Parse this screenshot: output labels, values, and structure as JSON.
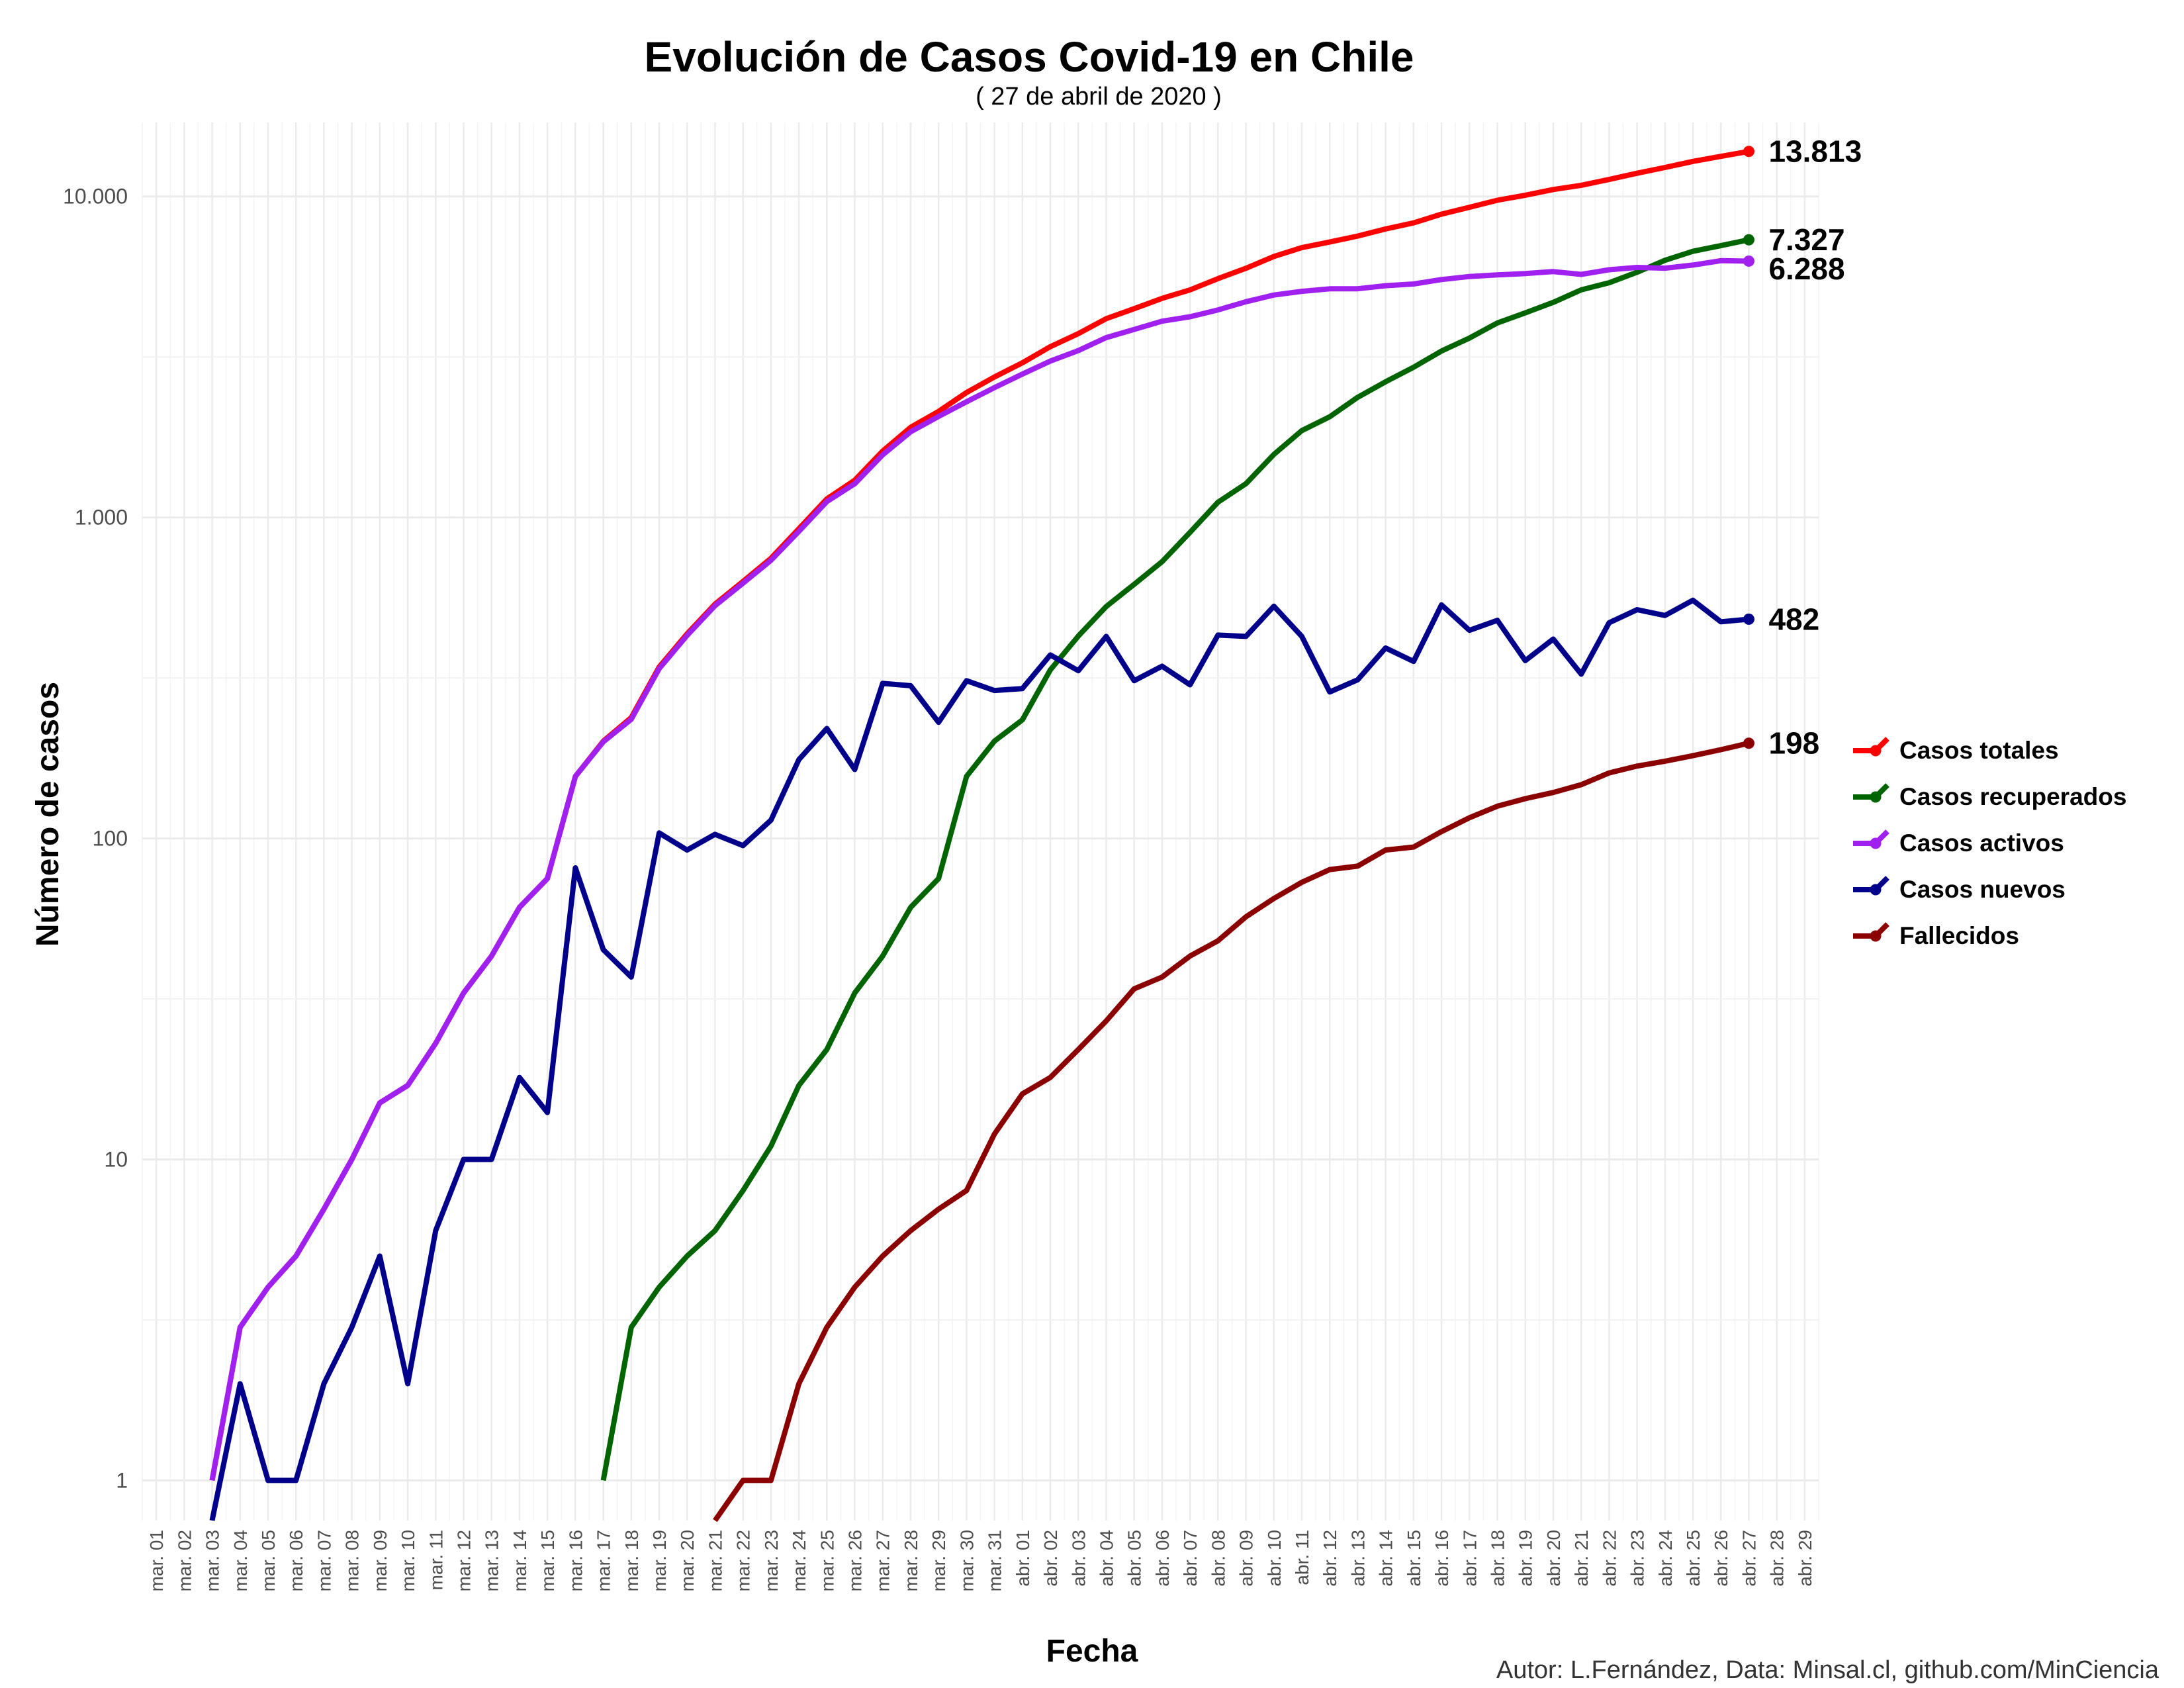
{
  "chart_data": {
    "type": "line",
    "title": "Evolución de Casos Covid-19 en Chile",
    "subtitle": "( 27 de abril de 2020 )",
    "xlabel": "Fecha",
    "ylabel": "Número de casos",
    "caption": "Autor: L.Fernández, Data: Minsal.cl, github.com/MinCiencia",
    "y_scale": "log10",
    "y_ticks": [
      1,
      10,
      100,
      1000,
      10000
    ],
    "y_tick_labels": [
      "1",
      "10",
      "100",
      "1.000",
      "10.000"
    ],
    "ylim": [
      0.75,
      17000
    ],
    "grid": true,
    "legend_position": "right",
    "x_tick_labels": [
      "mar. 01",
      "mar. 02",
      "mar. 03",
      "mar. 04",
      "mar. 05",
      "mar. 06",
      "mar. 07",
      "mar. 08",
      "mar. 09",
      "mar. 10",
      "mar. 11",
      "mar. 12",
      "mar. 13",
      "mar. 14",
      "mar. 15",
      "mar. 16",
      "mar. 17",
      "mar. 18",
      "mar. 19",
      "mar. 20",
      "mar. 21",
      "mar. 22",
      "mar. 23",
      "mar. 24",
      "mar. 25",
      "mar. 26",
      "mar. 27",
      "mar. 28",
      "mar. 29",
      "mar. 30",
      "mar. 31",
      "abr. 01",
      "abr. 02",
      "abr. 03",
      "abr. 04",
      "abr. 05",
      "abr. 06",
      "abr. 07",
      "abr. 08",
      "abr. 09",
      "abr. 10",
      "abr. 11",
      "abr. 12",
      "abr. 13",
      "abr. 14",
      "abr. 15",
      "abr. 16",
      "abr. 17",
      "abr. 18",
      "abr. 19",
      "abr. 20",
      "abr. 21",
      "abr. 22",
      "abr. 23",
      "abr. 24",
      "abr. 25",
      "abr. 26",
      "abr. 27",
      "abr. 28",
      "abr. 29"
    ],
    "x": [
      "mar. 03",
      "mar. 04",
      "mar. 05",
      "mar. 06",
      "mar. 07",
      "mar. 08",
      "mar. 09",
      "mar. 10",
      "mar. 11",
      "mar. 12",
      "mar. 13",
      "mar. 14",
      "mar. 15",
      "mar. 16",
      "mar. 17",
      "mar. 18",
      "mar. 19",
      "mar. 20",
      "mar. 21",
      "mar. 22",
      "mar. 23",
      "mar. 24",
      "mar. 25",
      "mar. 26",
      "mar. 27",
      "mar. 28",
      "mar. 29",
      "mar. 30",
      "mar. 31",
      "abr. 01",
      "abr. 02",
      "abr. 03",
      "abr. 04",
      "abr. 05",
      "abr. 06",
      "abr. 07",
      "abr. 08",
      "abr. 09",
      "abr. 10",
      "abr. 11",
      "abr. 12",
      "abr. 13",
      "abr. 14",
      "abr. 15",
      "abr. 16",
      "abr. 17",
      "abr. 18",
      "abr. 19",
      "abr. 20",
      "abr. 21",
      "abr. 22",
      "abr. 23",
      "abr. 24",
      "abr. 25",
      "abr. 26",
      "abr. 27"
    ],
    "series": [
      {
        "name": "Casos totales",
        "color": "#ff0000",
        "end_label": "13.813",
        "values": [
          1,
          3,
          4,
          5,
          7,
          10,
          15,
          17,
          23,
          33,
          43,
          61,
          75,
          156,
          201,
          238,
          342,
          434,
          537,
          632,
          746,
          922,
          1142,
          1306,
          1610,
          1909,
          2139,
          2449,
          2738,
          3031,
          3404,
          3737,
          4161,
          4471,
          4815,
          5116,
          5546,
          5972,
          6501,
          6927,
          7213,
          7525,
          7917,
          8273,
          8807,
          9252,
          9730,
          10088,
          10507,
          10832,
          11296,
          11812,
          12306,
          12858,
          13331,
          13813
        ]
      },
      {
        "name": "Casos recuperados",
        "color": "#006400",
        "end_label": "7.327",
        "values": [
          null,
          null,
          null,
          null,
          null,
          null,
          null,
          null,
          null,
          null,
          null,
          null,
          null,
          null,
          1,
          3,
          4,
          5,
          6,
          8,
          11,
          17,
          22,
          33,
          43,
          61,
          75,
          156,
          201,
          234,
          335,
          427,
          528,
          619,
          728,
          898,
          1115,
          1274,
          1571,
          1864,
          2059,
          2367,
          2646,
          2937,
          3299,
          3621,
          4035,
          4338,
          4676,
          5115,
          5386,
          5804,
          6327,
          6746,
          7024,
          7327
        ]
      },
      {
        "name": "Casos activos",
        "color": "#a020f0",
        "end_label": "6.288",
        "values": [
          1,
          3,
          4,
          5,
          7,
          10,
          15,
          17,
          23,
          33,
          43,
          61,
          75,
          156,
          200,
          235,
          338,
          429,
          531,
          624,
          735,
          905,
          1120,
          1273,
          1567,
          1848,
          2064,
          2293,
          2537,
          2797,
          3069,
          3310,
          3633,
          3852,
          4087,
          4218,
          4431,
          4698,
          4930,
          5063,
          5154,
          5158,
          5271,
          5336,
          5508,
          5631,
          5695,
          5750,
          5831,
          5717,
          5910,
          6008,
          5979,
          6112,
          6307,
          6288
        ]
      },
      {
        "name": "Casos nuevos",
        "color": "#00008b",
        "end_label": "482",
        "values": [
          0.75,
          2,
          1,
          1,
          2,
          3,
          5,
          2,
          6,
          10,
          10,
          18,
          14,
          81,
          45,
          37,
          104,
          92,
          103,
          95,
          114,
          176,
          220,
          164,
          304,
          299,
          230,
          310,
          289,
          293,
          373,
          333,
          426,
          310,
          344,
          301,
          430,
          426,
          529,
          426,
          286,
          312,
          392,
          356,
          534,
          445,
          478,
          358,
          418,
          325,
          470,
          516,
          495,
          552,
          473,
          482
        ]
      },
      {
        "name": "Fallecidos",
        "color": "#8b0000",
        "end_label": "198",
        "values": [
          null,
          null,
          null,
          null,
          null,
          null,
          null,
          null,
          null,
          null,
          null,
          null,
          null,
          null,
          null,
          null,
          null,
          null,
          0.75,
          1,
          1,
          2,
          3,
          4,
          5,
          6,
          7,
          8,
          12,
          16,
          18,
          22,
          27,
          34,
          37,
          43,
          48,
          57,
          65,
          73,
          80,
          82,
          92,
          94,
          105,
          116,
          126,
          133,
          139,
          147,
          160,
          168,
          174,
          181,
          189,
          198
        ]
      }
    ]
  }
}
